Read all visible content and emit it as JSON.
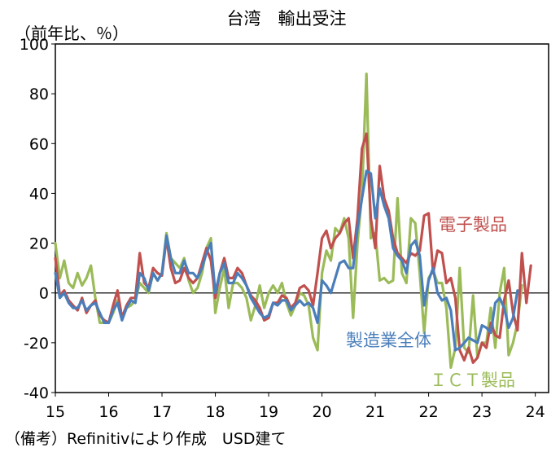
{
  "chart_data": {
    "type": "line",
    "title": "台湾　輸出受注",
    "ylabel": "（前年比、％）",
    "xlabel": "",
    "ylim": [
      -40,
      100
    ],
    "yticks": [
      -40,
      -20,
      0,
      20,
      40,
      60,
      80,
      100
    ],
    "xlim": [
      2015.0,
      2024.25
    ],
    "xticks": [
      {
        "value": 2015.0,
        "label": "15"
      },
      {
        "value": 2016.0,
        "label": "16"
      },
      {
        "value": 2017.0,
        "label": "17"
      },
      {
        "value": 2018.0,
        "label": "18"
      },
      {
        "value": 2019.0,
        "label": "19"
      },
      {
        "value": 2020.0,
        "label": "20"
      },
      {
        "value": 2021.0,
        "label": "21"
      },
      {
        "value": 2022.0,
        "label": "22"
      },
      {
        "value": 2023.0,
        "label": "23"
      },
      {
        "value": 2024.0,
        "label": "24"
      }
    ],
    "x_start": 2015.0,
    "x_step_months": 1,
    "note": "（備考）Refinitivにより作成　USD建て",
    "series": [
      {
        "name": "製造業全体",
        "color": "#4a7ebb",
        "values": [
          8,
          -2,
          0,
          -4,
          -6,
          -6,
          -3,
          -7,
          -5,
          -4,
          -8,
          -12,
          -12,
          -7,
          -4,
          -11,
          -6,
          -3,
          -4,
          8,
          6,
          1,
          8,
          5,
          8,
          23,
          14,
          8,
          8,
          13,
          8,
          8,
          6,
          10,
          16,
          20,
          0,
          8,
          12,
          4,
          4,
          8,
          6,
          3,
          -2,
          -5,
          -8,
          -10,
          -9,
          -4,
          -5,
          -3,
          -3,
          -7,
          -5,
          -3,
          -5,
          -4,
          -6,
          -12,
          5,
          3,
          0,
          6,
          12,
          13,
          10,
          10,
          26,
          38,
          49,
          48,
          30,
          42,
          35,
          30,
          18,
          15,
          13,
          8,
          19,
          21,
          15,
          -5,
          5,
          10,
          0,
          -3,
          -2,
          -7,
          -23,
          -22,
          -20,
          -18,
          -19,
          -20,
          -13,
          -14,
          -16,
          -4,
          -2,
          -6,
          -14,
          -10,
          1
        ]
      },
      {
        "name": "電子製品",
        "color": "#c0504d",
        "values": [
          14,
          -1,
          1,
          -3,
          -5,
          -7,
          -2,
          -8,
          -5,
          -3,
          -9,
          -11,
          -12,
          -5,
          1,
          -10,
          -5,
          -2,
          -2,
          16,
          4,
          2,
          10,
          8,
          7,
          22,
          10,
          4,
          5,
          10,
          6,
          4,
          6,
          12,
          18,
          13,
          -2,
          8,
          14,
          6,
          6,
          10,
          8,
          3,
          -1,
          -3,
          -6,
          -11,
          -10,
          -4,
          -4,
          -1,
          -2,
          -6,
          -4,
          2,
          3,
          1,
          -5,
          8,
          22,
          25,
          18,
          22,
          24,
          28,
          30,
          14,
          30,
          58,
          64,
          30,
          18,
          51,
          38,
          33,
          22,
          16,
          14,
          12,
          16,
          15,
          17,
          31,
          32,
          8,
          17,
          16,
          4,
          6,
          -2,
          -23,
          -27,
          -22,
          -28,
          -26,
          -20,
          -22,
          -12,
          -17,
          -18,
          -3,
          5,
          -8,
          -15,
          16,
          -4,
          11
        ]
      },
      {
        "name": "ＩＣＴ製品",
        "color": "#9bbb59",
        "values": [
          20,
          6,
          13,
          4,
          2,
          8,
          3,
          6,
          11,
          -2,
          -12,
          -12,
          -12,
          -8,
          -3,
          -10,
          -6,
          -5,
          -3,
          4,
          2,
          0,
          8,
          5,
          8,
          24,
          14,
          12,
          10,
          14,
          5,
          0,
          2,
          8,
          18,
          22,
          -8,
          2,
          10,
          -6,
          4,
          4,
          2,
          -2,
          -11,
          -5,
          3,
          -6,
          0,
          3,
          0,
          4,
          -4,
          -9,
          -5,
          0,
          -1,
          -5,
          -18,
          -23,
          8,
          17,
          13,
          26,
          24,
          30,
          22,
          -10,
          20,
          40,
          88,
          22,
          24,
          5,
          6,
          4,
          5,
          38,
          8,
          4,
          30,
          28,
          8,
          -16,
          6,
          9,
          4,
          4,
          -6,
          -30,
          -22,
          10,
          -22,
          -24,
          -1,
          -26,
          -20,
          -20,
          -6,
          -22,
          0,
          10,
          -25,
          -20,
          -12,
          3
        ]
      }
    ],
    "series_labels": [
      "電子製品",
      "製造業全体",
      "ＩＣＴ製品"
    ]
  }
}
